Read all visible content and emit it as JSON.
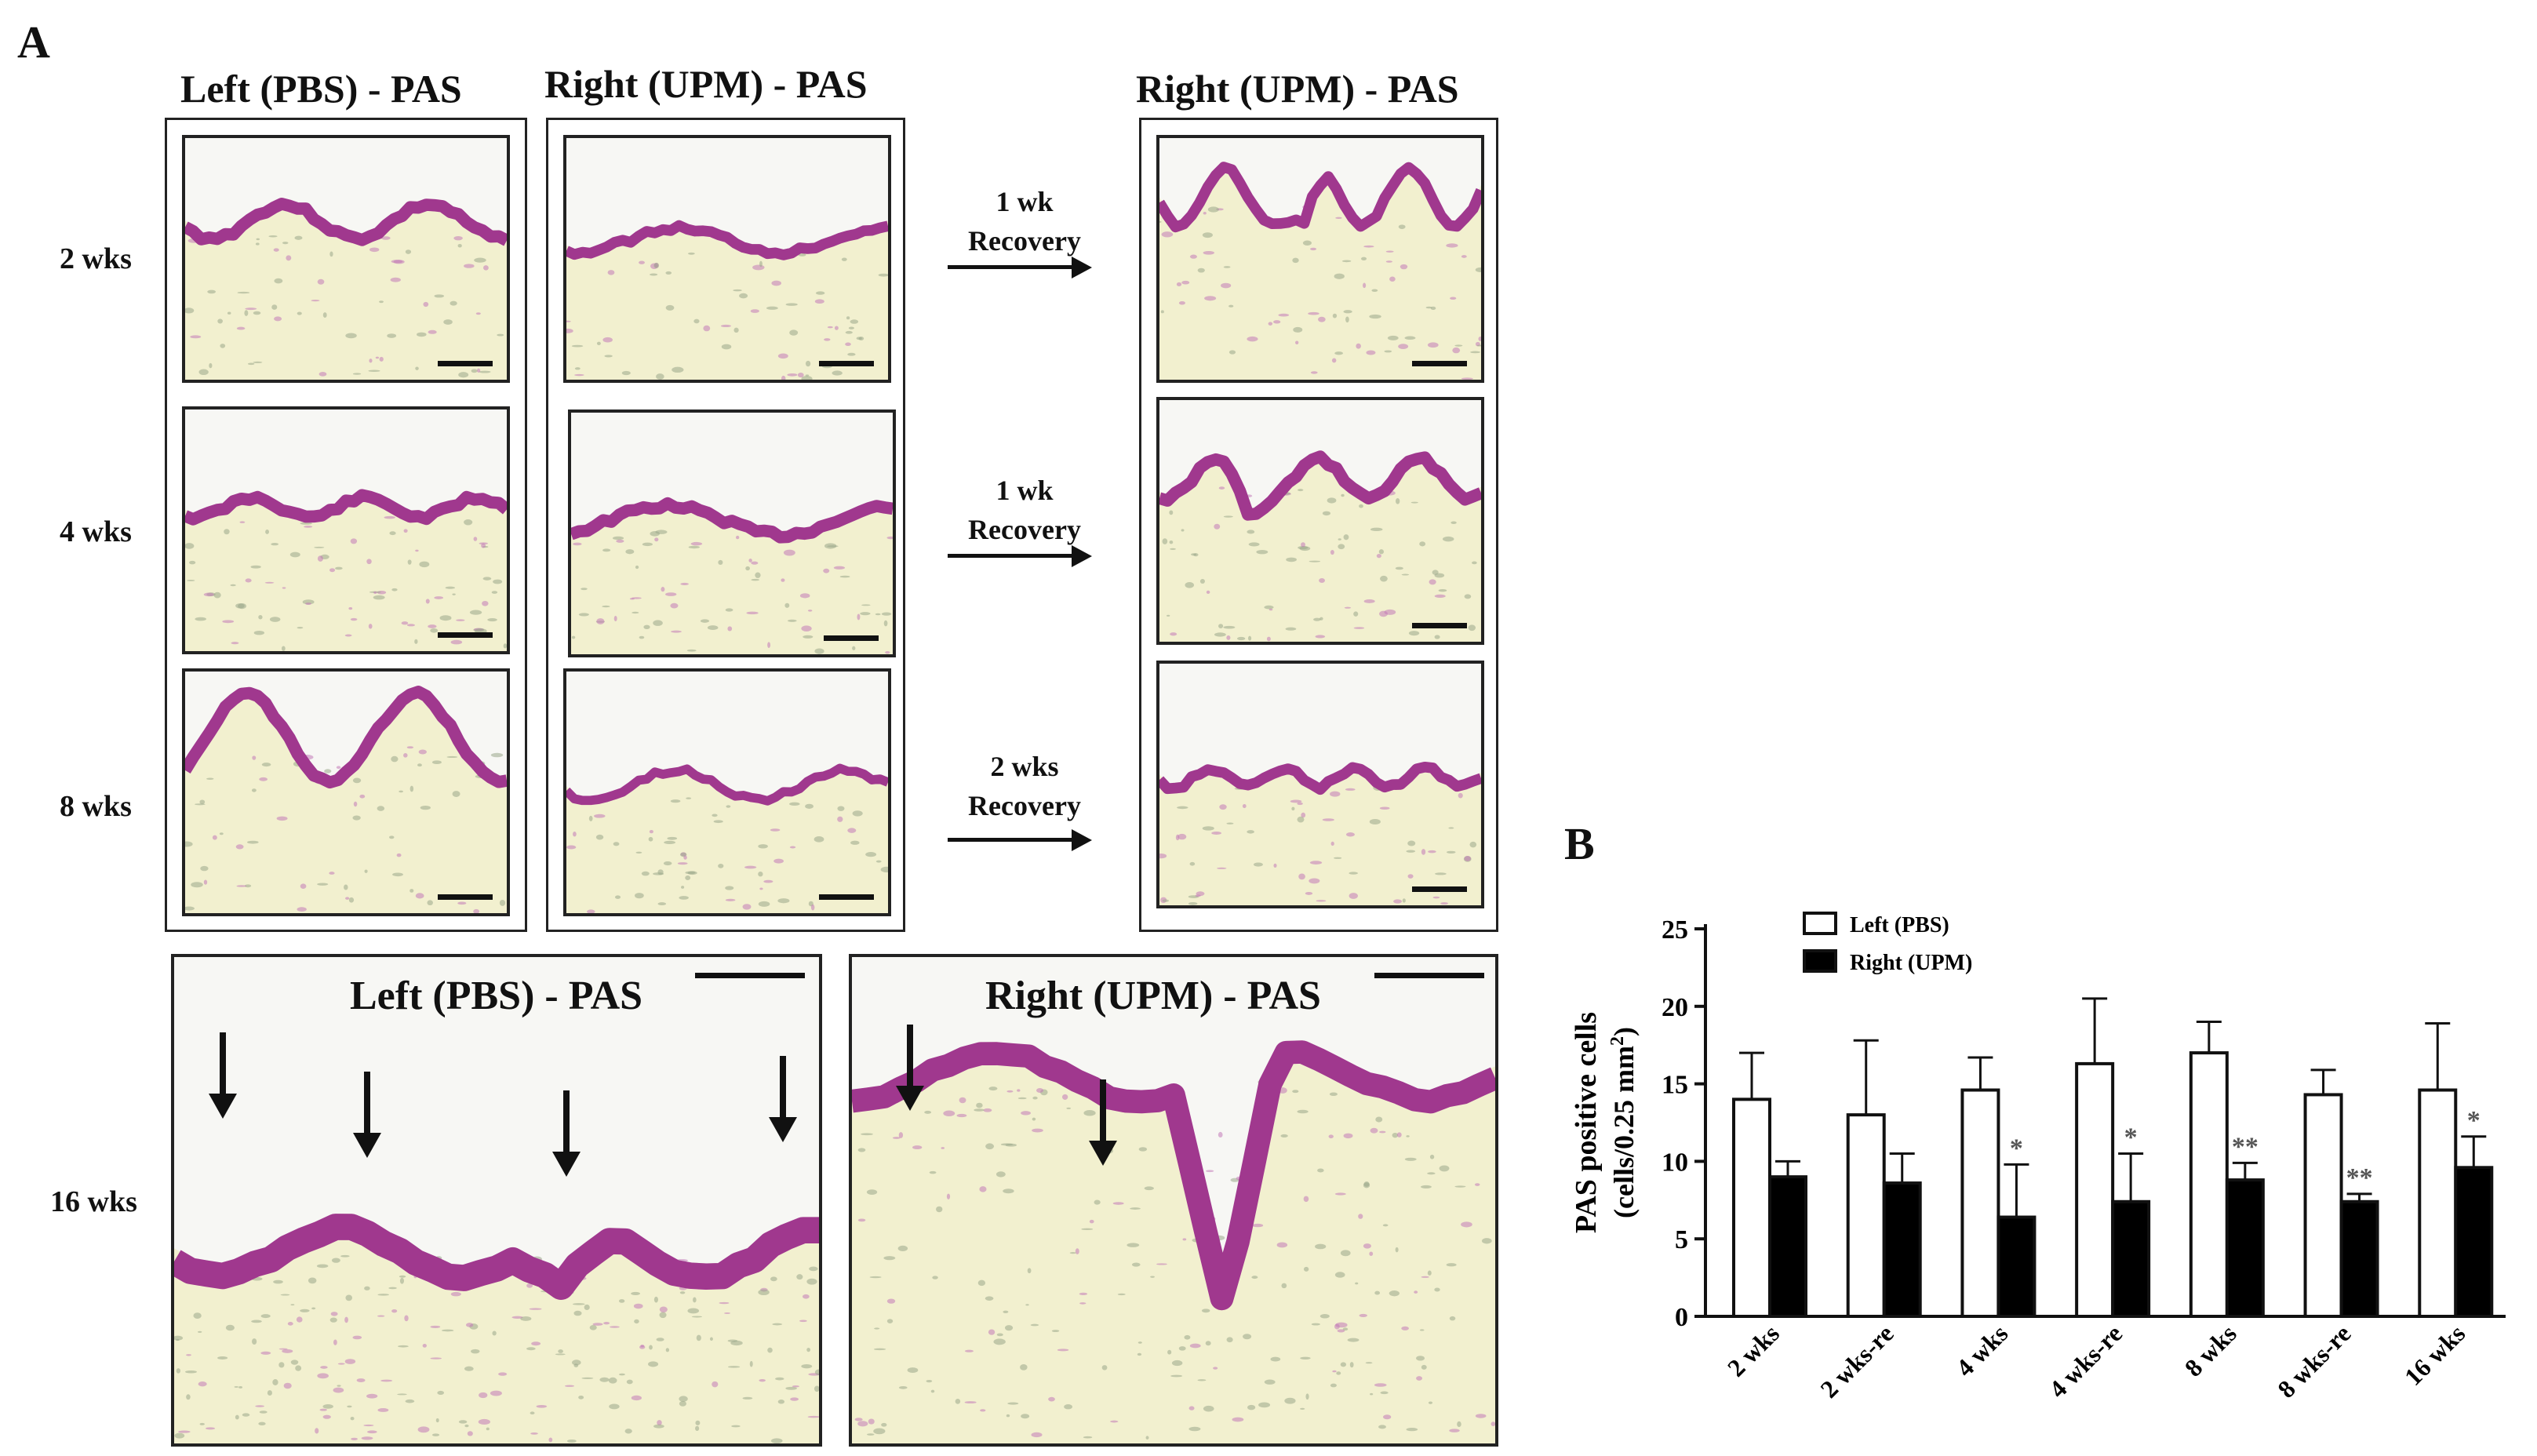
{
  "figure": {
    "panel_a_label": "A",
    "panel_b_label": "B",
    "column_titles": {
      "left_pbs": "Left (PBS) - PAS",
      "right_upm": "Right (UPM) - PAS",
      "right_upm_recovery": "Right (UPM) - PAS"
    },
    "rows": [
      {
        "label": "2 wks",
        "recovery_line1": "1 wk",
        "recovery_line2": "Recovery"
      },
      {
        "label": "4 wks",
        "recovery_line1": "1 wk",
        "recovery_line2": "Recovery"
      },
      {
        "label": "8 wks",
        "recovery_line1": "2 wks",
        "recovery_line2": "Recovery"
      }
    ],
    "bottom_row": {
      "label": "16 wks",
      "left_title": "Left (PBS) - PAS",
      "right_title": "Right (UPM) - PAS"
    },
    "colors": {
      "tissue": "#f2f0cf",
      "stain": "#a0388e",
      "stain_light": "#c27ab8",
      "background": "#f7f7f4"
    }
  },
  "chart_data": {
    "type": "bar",
    "categories": [
      "2 wks",
      "2 wks-re",
      "4 wks",
      "4 wks-re",
      "8 wks",
      "8 wks-re",
      "16 wks"
    ],
    "series": [
      {
        "name": "Left (PBS)",
        "color": "#ffffff",
        "values": [
          14.0,
          13.0,
          14.6,
          16.3,
          17.0,
          14.3,
          14.6
        ],
        "errors": [
          3.0,
          4.8,
          2.1,
          4.2,
          2.0,
          1.6,
          4.3
        ]
      },
      {
        "name": "Right (UPM)",
        "color": "#000000",
        "values": [
          9.0,
          8.6,
          6.4,
          7.4,
          8.8,
          7.4,
          9.6
        ],
        "errors": [
          1.0,
          1.9,
          3.4,
          3.1,
          1.1,
          0.5,
          2.0
        ]
      }
    ],
    "significance": [
      "",
      "",
      "*",
      "*",
      "**",
      "**",
      "*"
    ],
    "ylabel": "PAS positive cells",
    "ylabel_line2_prefix": "(cells/0.25 mm",
    "ylabel_sup": "2",
    "ylabel_line2_suffix": ")",
    "yticks": [
      "0",
      "5",
      "10",
      "15",
      "20",
      "25"
    ],
    "ylim": [
      0,
      25
    ],
    "legend_position": "top-left"
  }
}
